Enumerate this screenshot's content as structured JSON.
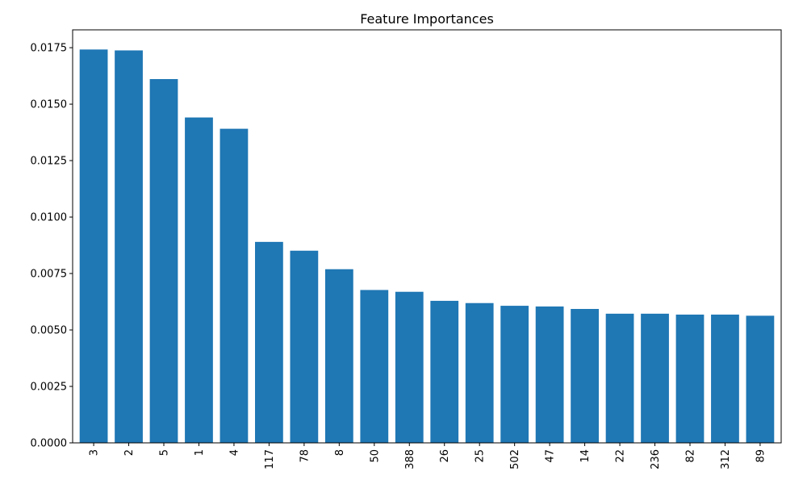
{
  "chart_data": {
    "type": "bar",
    "title": "Feature Importances",
    "xlabel": "",
    "ylabel": "",
    "categories": [
      "3",
      "2",
      "5",
      "1",
      "4",
      "117",
      "78",
      "8",
      "50",
      "388",
      "26",
      "25",
      "502",
      "47",
      "14",
      "22",
      "236",
      "82",
      "312",
      "89"
    ],
    "values": [
      0.01742,
      0.01738,
      0.01611,
      0.01441,
      0.01391,
      0.0089,
      0.00851,
      0.00769,
      0.00677,
      0.00669,
      0.00629,
      0.00619,
      0.00607,
      0.00604,
      0.00593,
      0.00572,
      0.00572,
      0.00568,
      0.00568,
      0.00563
    ],
    "ylim": [
      0,
      0.01829
    ],
    "yticks": [
      "0.0000",
      "0.0025",
      "0.0050",
      "0.0075",
      "0.0100",
      "0.0125",
      "0.0150",
      "0.0175"
    ],
    "bar_color": "#1f77b4",
    "grid": false,
    "legend": "none"
  }
}
